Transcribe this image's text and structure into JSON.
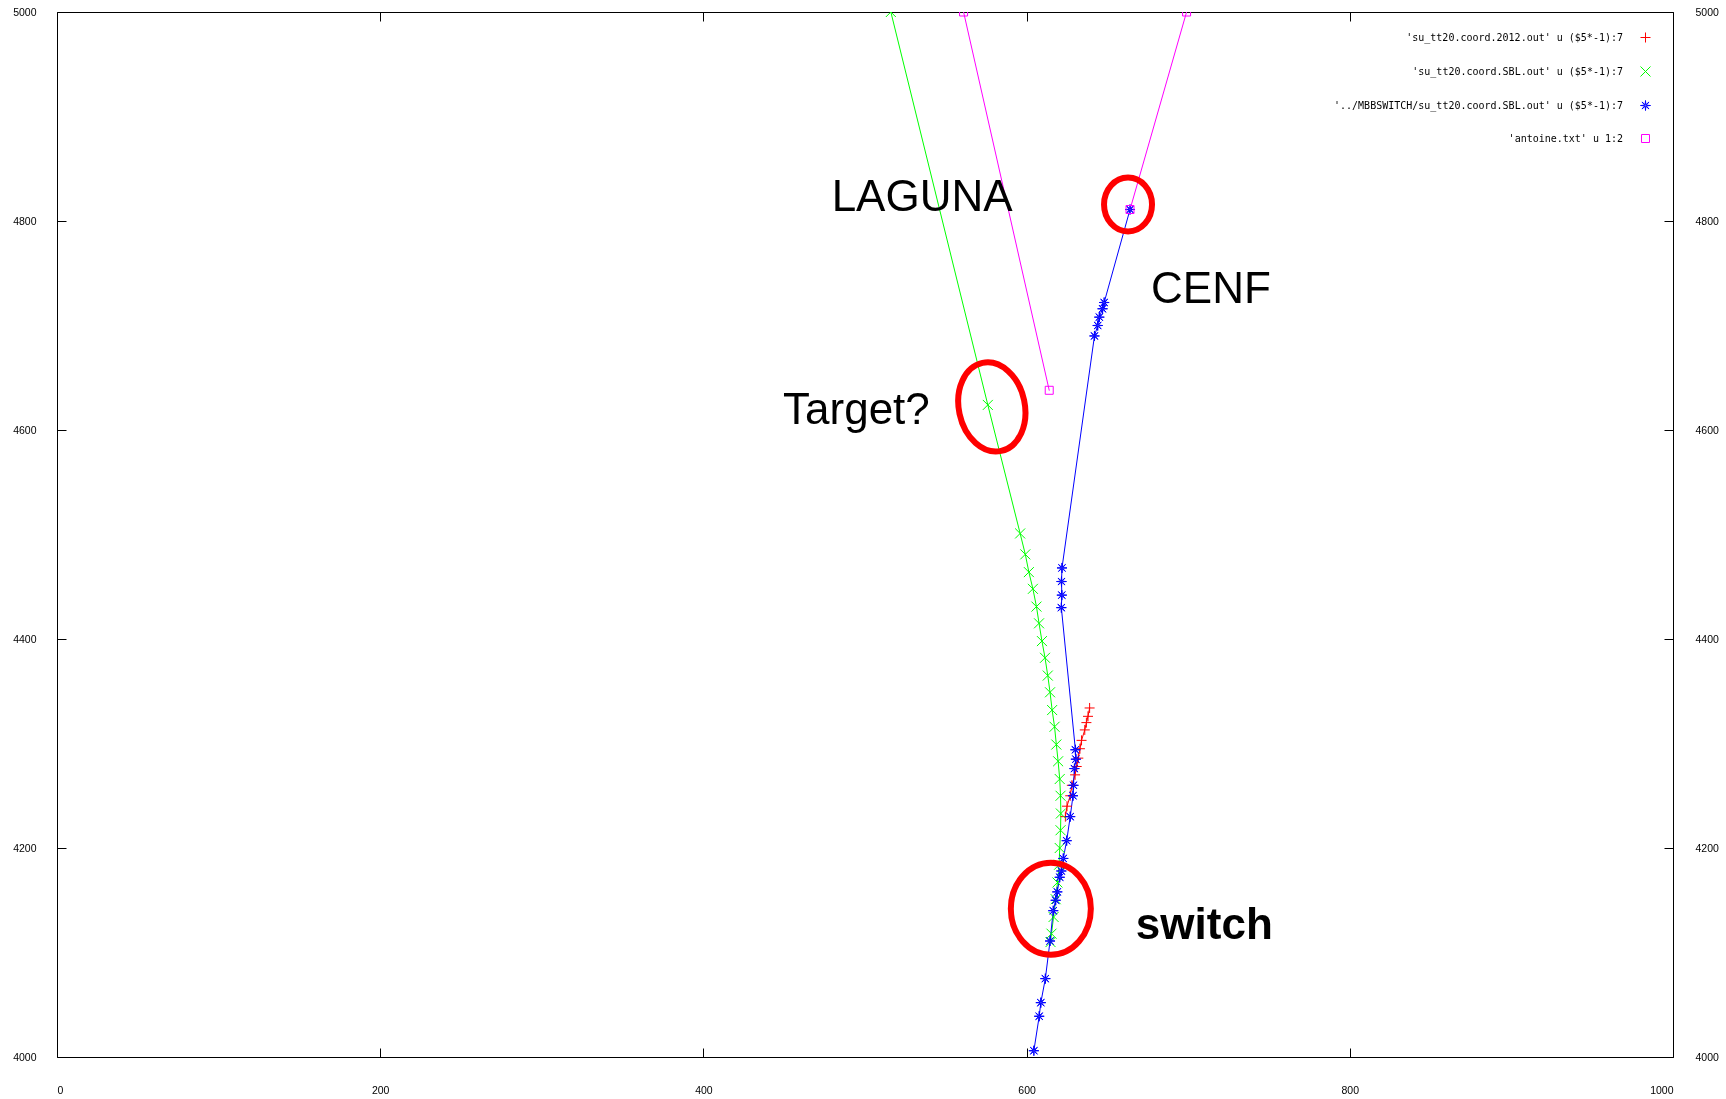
{
  "chart_data": {
    "type": "line",
    "xlim": [
      0,
      1000
    ],
    "xticks": [
      0,
      200,
      400,
      600,
      800,
      1000
    ],
    "ylim": [
      4000,
      5000
    ],
    "yticks": [
      4000,
      4200,
      4400,
      4600,
      4800,
      5000
    ],
    "y2lim": [
      4000,
      5000
    ],
    "y2ticks": [
      4000,
      4200,
      4400,
      4600,
      4800,
      5000
    ],
    "grid": false,
    "legend": "top right",
    "series": [
      {
        "name": "'su_tt20.coord.2012.out' u ($5*-1):7",
        "color": "#ff0000",
        "marker": "cross",
        "x": [
          624,
          625,
          627,
          628,
          630,
          631,
          632,
          633,
          634,
          636,
          637,
          638,
          639
        ],
        "values": [
          4230,
          4240,
          4250,
          4260,
          4270,
          4278,
          4286,
          4295,
          4303,
          4313,
          4320,
          4326,
          4334
        ]
      },
      {
        "name": "'su_tt20.coord.SBL.out' u ($5*-1):7",
        "color": "#00ff00",
        "marker": "x",
        "x": [
          614.8,
          615.4,
          616.7,
          618,
          619.1,
          620.1,
          620.5,
          621,
          621.2,
          621,
          620.5,
          619.5,
          618.4,
          617.3,
          615.8,
          614.5,
          613.1,
          611.4,
          609.5,
          607.7,
          606.1,
          603.9,
          601.4,
          599.2,
          596,
          576,
          516
        ],
        "values": [
          4110,
          4118,
          4134,
          4151,
          4167,
          4184,
          4200,
          4217,
          4233,
          4250,
          4266,
          4283,
          4299,
          4316,
          4332,
          4349,
          4365,
          4382,
          4398,
          4415,
          4431,
          4448,
          4464,
          4481,
          4501,
          4624,
          5000
        ]
      },
      {
        "name": "'../MBBSWITCH/su_tt20.coord.SBL.out' u ($5*-1):7",
        "color": "#0000ff",
        "marker": "star",
        "x": [
          604.5,
          607.8,
          608.8,
          611.6,
          614.5,
          616.5,
          618,
          619,
          620.5,
          621.5,
          622.7,
          624.8,
          627,
          628.7,
          629,
          629.6,
          630.5,
          630.2,
          621.5,
          621.8,
          621.6,
          621.9,
          642,
          644,
          645,
          647,
          648,
          664
        ],
        "values": [
          4006,
          4039,
          4052,
          4075,
          4111,
          4140,
          4150,
          4158,
          4172,
          4178,
          4190,
          4207,
          4230,
          4250,
          4260,
          4276,
          4285,
          4294,
          4430,
          4442,
          4455,
          4468,
          4690,
          4700,
          4708,
          4716,
          4722,
          4811
        ]
      },
      {
        "name": "'antoine.txt' u 1:2",
        "color": "#ff00ff",
        "marker": "square",
        "x": [
          561,
          614,
          640,
          664,
          699
        ],
        "values": [
          5000,
          4638,
          null,
          4811,
          5000
        ]
      }
    ],
    "annotations": [
      {
        "text": "LAGUNA",
        "x": 587,
        "y": 4821
      },
      {
        "text": "CENF",
        "x": 664,
        "y": 4811
      },
      {
        "text": "Target?",
        "x": 576,
        "y": 4624
      },
      {
        "text": "switch",
        "x": 615,
        "y": 4140
      }
    ]
  }
}
